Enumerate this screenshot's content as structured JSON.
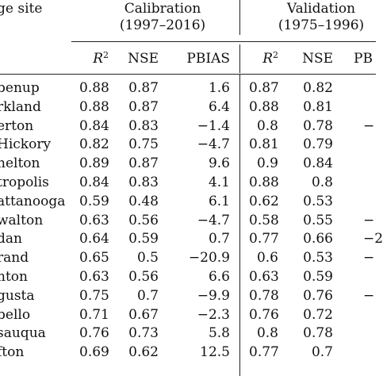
{
  "table": {
    "col_site": "ge site",
    "groups": [
      {
        "title": "Calibration",
        "period": "(1997–2016)"
      },
      {
        "title": "Validation",
        "period": "(1975–1996)"
      }
    ],
    "metrics": {
      "r2_base": "R",
      "r2_sup": "2",
      "nse": "NSE",
      "pbias": "PBIAS",
      "pbias_cut": "PB"
    },
    "rows": [
      {
        "site": "benup",
        "cal_r2": "0.88",
        "cal_nse": "0.87",
        "cal_pbias": "1.6",
        "val_r2": "0.87",
        "val_nse": "0.82",
        "val_pbias": ""
      },
      {
        "site": "rkland",
        "cal_r2": "0.88",
        "cal_nse": "0.87",
        "cal_pbias": "6.4",
        "val_r2": "0.88",
        "val_nse": "0.81",
        "val_pbias": ""
      },
      {
        "site": "erton",
        "cal_r2": "0.84",
        "cal_nse": "0.83",
        "cal_pbias": "−1.4",
        "val_r2": "0.8",
        "val_nse": "0.78",
        "val_pbias": "−"
      },
      {
        "site": "Hickory",
        "cal_r2": "0.82",
        "cal_nse": "0.75",
        "cal_pbias": "−4.7",
        "val_r2": "0.81",
        "val_nse": "0.79",
        "val_pbias": ""
      },
      {
        "site": "nelton",
        "cal_r2": "0.89",
        "cal_nse": "0.87",
        "cal_pbias": "9.6",
        "val_r2": "0.9",
        "val_nse": "0.84",
        "val_pbias": ""
      },
      {
        "site": "tropolis",
        "cal_r2": "0.84",
        "cal_nse": "0.83",
        "cal_pbias": "4.1",
        "val_r2": "0.88",
        "val_nse": "0.8",
        "val_pbias": ""
      },
      {
        "site": "attanooga",
        "cal_r2": "0.59",
        "cal_nse": "0.48",
        "cal_pbias": "6.1",
        "val_r2": "0.62",
        "val_nse": "0.53",
        "val_pbias": ""
      },
      {
        "site": "walton",
        "cal_r2": "0.63",
        "cal_nse": "0.56",
        "cal_pbias": "−4.7",
        "val_r2": "0.58",
        "val_nse": "0.55",
        "val_pbias": "−"
      },
      {
        "site": "dan",
        "cal_r2": "0.64",
        "cal_nse": "0.59",
        "cal_pbias": "0.7",
        "val_r2": "0.77",
        "val_nse": "0.66",
        "val_pbias": "−2"
      },
      {
        "site": "rand",
        "cal_r2": "0.65",
        "cal_nse": "0.5",
        "cal_pbias": "−20.9",
        "val_r2": "0.6",
        "val_nse": "0.53",
        "val_pbias": "−"
      },
      {
        "site": "nton",
        "cal_r2": "0.63",
        "cal_nse": "0.56",
        "cal_pbias": "6.6",
        "val_r2": "0.63",
        "val_nse": "0.59",
        "val_pbias": ""
      },
      {
        "site": "gusta",
        "cal_r2": "0.75",
        "cal_nse": "0.7",
        "cal_pbias": "−9.9",
        "val_r2": "0.78",
        "val_nse": "0.76",
        "val_pbias": "−"
      },
      {
        "site": "bello",
        "cal_r2": "0.71",
        "cal_nse": "0.67",
        "cal_pbias": "−2.3",
        "val_r2": "0.76",
        "val_nse": "0.72",
        "val_pbias": ""
      },
      {
        "site": "sauqua",
        "cal_r2": "0.76",
        "cal_nse": "0.73",
        "cal_pbias": "5.8",
        "val_r2": "0.8",
        "val_nse": "0.78",
        "val_pbias": ""
      },
      {
        "site": "fton",
        "cal_r2": "0.69",
        "cal_nse": "0.62",
        "cal_pbias": "12.5",
        "val_r2": "0.77",
        "val_nse": "0.7",
        "val_pbias": ""
      }
    ]
  }
}
